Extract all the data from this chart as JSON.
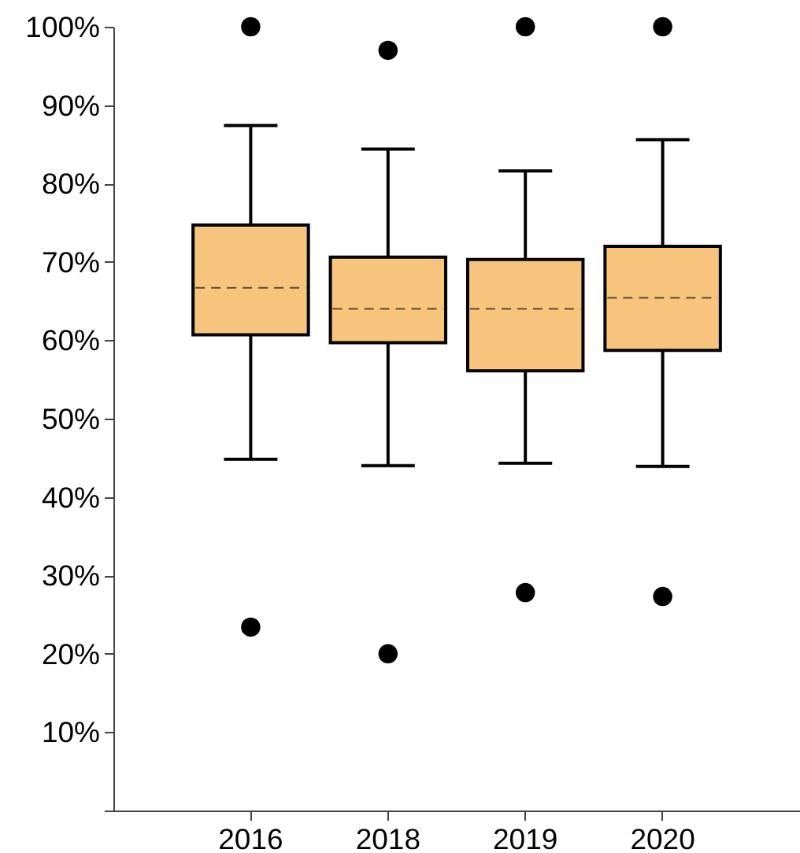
{
  "chart_data": {
    "type": "box",
    "categories": [
      "2016",
      "2018",
      "2019",
      "2020"
    ],
    "ylim": [
      0,
      100
    ],
    "yticks": [
      {
        "value": 0,
        "label": null
      },
      {
        "value": 10,
        "label": "10%"
      },
      {
        "value": 20,
        "label": "20%"
      },
      {
        "value": 30,
        "label": "30%"
      },
      {
        "value": 40,
        "label": "40%"
      },
      {
        "value": 50,
        "label": "50%"
      },
      {
        "value": 60,
        "label": "60%"
      },
      {
        "value": 70,
        "label": "70%"
      },
      {
        "value": 80,
        "label": "80%"
      },
      {
        "value": 90,
        "label": "90%"
      },
      {
        "value": 100,
        "label": "100%"
      }
    ],
    "marker": "circle",
    "line_style": "dashed",
    "series": [
      {
        "color": "#f6c47c",
        "boxes": [
          {
            "low": 44.8,
            "q1": 60.7,
            "median": 66.7,
            "q3": 74.7,
            "high": 87.4,
            "outliers": [
              100,
              23.4
            ]
          },
          {
            "low": 44.0,
            "q1": 59.7,
            "median": 64.0,
            "q3": 70.6,
            "high": 84.4,
            "outliers": [
              97.0,
              20.0
            ]
          },
          {
            "low": 44.3,
            "q1": 56.1,
            "median": 64.0,
            "q3": 70.3,
            "high": 81.6,
            "outliers": [
              100,
              27.8
            ]
          },
          {
            "low": 43.9,
            "q1": 58.7,
            "median": 65.4,
            "q3": 72.0,
            "high": 85.6,
            "outliers": [
              100,
              27.3
            ]
          }
        ]
      }
    ]
  }
}
